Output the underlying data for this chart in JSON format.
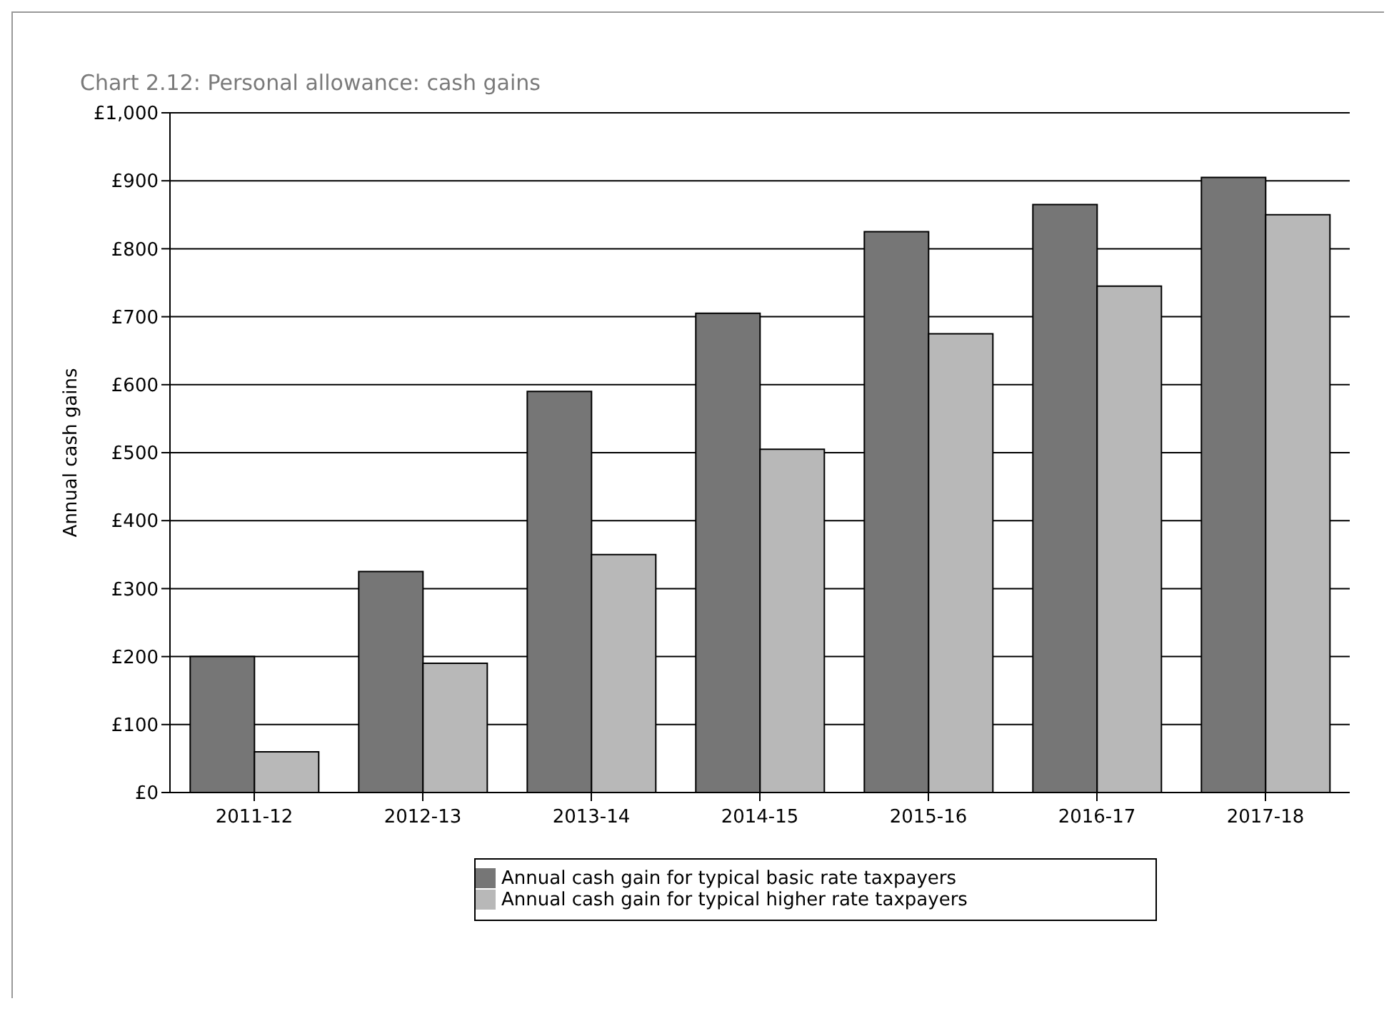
{
  "chart_data": {
    "type": "bar",
    "title": "Chart 2.12: Personal allowance: cash gains",
    "ylabel": "Annual cash gains",
    "categories": [
      "2011-12",
      "2012-13",
      "2013-14",
      "2014-15",
      "2015-16",
      "2016-17",
      "2017-18"
    ],
    "series": [
      {
        "name": "Annual cash gain for typical basic rate taxpayers",
        "color": "#767676",
        "values": [
          200,
          325,
          590,
          705,
          825,
          865,
          905
        ]
      },
      {
        "name": "Annual cash gain for typical higher rate taxpayers",
        "color": "#b8b8b8",
        "values": [
          60,
          190,
          350,
          505,
          675,
          745,
          850
        ]
      }
    ],
    "ylim": [
      0,
      1000
    ],
    "yticks": [
      {
        "value": 0,
        "label": "£0"
      },
      {
        "value": 100,
        "label": "£100"
      },
      {
        "value": 200,
        "label": "£200"
      },
      {
        "value": 300,
        "label": "£300"
      },
      {
        "value": 400,
        "label": "£400"
      },
      {
        "value": 500,
        "label": "£500"
      },
      {
        "value": 600,
        "label": "£600"
      },
      {
        "value": 700,
        "label": "£700"
      },
      {
        "value": 800,
        "label": "£800"
      },
      {
        "value": 900,
        "label": "£900"
      },
      {
        "value": 1000,
        "label": "£1,000"
      }
    ],
    "grid": "y",
    "legend": "bottom"
  }
}
